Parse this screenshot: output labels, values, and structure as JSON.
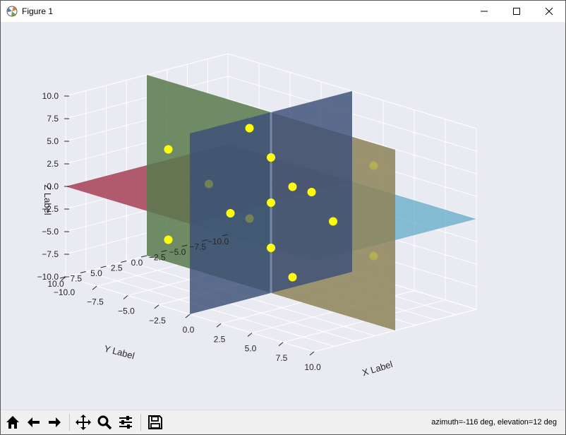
{
  "window": {
    "title": "Figure 1"
  },
  "toolbar": {
    "buttons": [
      "home-icon",
      "back-icon",
      "forward-icon",
      "pan-icon",
      "zoom-icon",
      "configure-subplots-icon",
      "save-icon"
    ],
    "status": "azimuth=-116 deg, elevation=12 deg"
  },
  "chart_data": {
    "type": "scatter",
    "projection": "3d",
    "view": {
      "azimuth": -116,
      "elevation": 12
    },
    "xlabel": "X Label",
    "ylabel": "Y Label",
    "zlabel": "Z Label",
    "xlim": [
      -10,
      10
    ],
    "ylim": [
      -10,
      10
    ],
    "zlim": [
      -10,
      10
    ],
    "x_ticks": [
      "−10.0",
      "−7.5",
      "−5.0",
      "−2.5",
      "0.0",
      "2.5",
      "5.0",
      "7.5",
      "10.0"
    ],
    "y_ticks": [
      "10.0",
      "7.5",
      "5.0",
      "2.5",
      "0.0",
      "−2.5",
      "−5.0",
      "−7.5",
      "−10.0"
    ],
    "z_ticks": [
      "10.0",
      "7.5",
      "5.0",
      "2.5",
      "0.0",
      "−2.5",
      "−5.0",
      "−7.5",
      "−10.0"
    ],
    "grid": true,
    "planes": [
      {
        "name": "plane z=0 (red)",
        "orientation": "xy",
        "value": 0,
        "color": "#c0394b"
      },
      {
        "name": "plane z=0 (blue/cyan)",
        "orientation": "xy",
        "value": 0,
        "color": "#5aa6c4"
      },
      {
        "name": "plane x=0",
        "orientation": "yz",
        "value": 0,
        "color": "#3c4f78"
      },
      {
        "name": "plane y=0 (green)",
        "orientation": "xz",
        "value": 0,
        "color": "#587a4d"
      },
      {
        "name": "plane y=0 (yellow)",
        "orientation": "xz",
        "value": 0,
        "color": "#8d8458"
      }
    ],
    "points": [
      {
        "x": 5,
        "y": 5,
        "z": 5
      },
      {
        "x": 5,
        "y": 5,
        "z": -5
      },
      {
        "x": 5,
        "y": -5,
        "z": 5
      },
      {
        "x": 5,
        "y": -5,
        "z": -5
      },
      {
        "x": -5,
        "y": 5,
        "z": 5
      },
      {
        "x": -5,
        "y": 5,
        "z": -5
      },
      {
        "x": -5,
        "y": -5,
        "z": 5
      },
      {
        "x": -5,
        "y": -5,
        "z": -5
      },
      {
        "x": 5,
        "y": 0,
        "z": 0
      },
      {
        "x": -5,
        "y": 0,
        "z": 0
      },
      {
        "x": 0,
        "y": 5,
        "z": 0
      },
      {
        "x": 0,
        "y": -5,
        "z": 0
      },
      {
        "x": 0,
        "y": 0,
        "z": 5
      },
      {
        "x": 0,
        "y": 0,
        "z": -5
      },
      {
        "x": 0,
        "y": 0,
        "z": 0
      }
    ],
    "point_color": "#ffff00"
  }
}
